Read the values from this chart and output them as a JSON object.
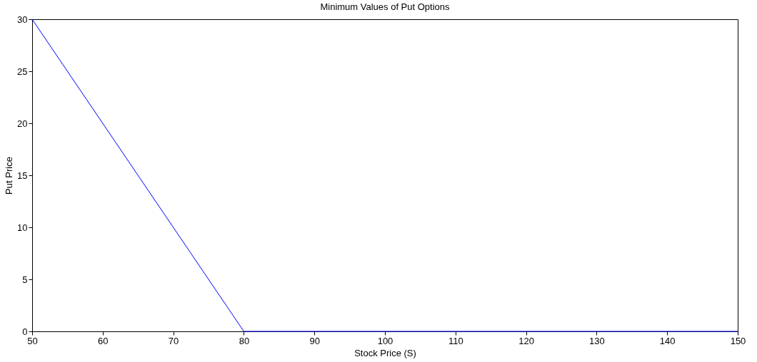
{
  "chart_data": {
    "type": "line",
    "title": "Minimum Values of Put Options",
    "xlabel": "Stock Price (S)",
    "ylabel": "Put Price",
    "x": [
      50,
      80,
      150
    ],
    "series": [
      {
        "color": "#0000ff",
        "values": [
          30,
          0,
          0
        ]
      }
    ],
    "xlim": [
      50,
      150
    ],
    "xticks": [
      50,
      60,
      70,
      80,
      90,
      100,
      110,
      120,
      130,
      140,
      150
    ],
    "ylim": [
      0,
      30
    ],
    "yticks": [
      0,
      5,
      10,
      15,
      20,
      25,
      30
    ],
    "grid": false,
    "marker": "none",
    "line_style": "solid"
  }
}
